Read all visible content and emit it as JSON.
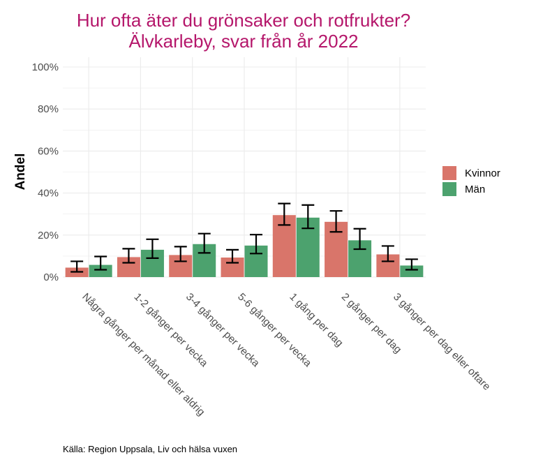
{
  "chart_data": {
    "type": "bar",
    "title": "Hur ofta äter du grönsaker och rotfrukter?",
    "subtitle": "Älvkarleby, svar från år 2022",
    "xlabel": "",
    "ylabel": "Andel",
    "ylim": [
      0,
      100
    ],
    "yticks": [
      "0%",
      "20%",
      "40%",
      "60%",
      "80%",
      "100%"
    ],
    "categories": [
      "Några gånger per månad eller aldrig",
      "1-2 gånger per vecka",
      "3-4 gånger per vecka",
      "5-6 gånger per vecka",
      "1 gång per dag",
      "2 gånger per dag",
      "3 gånger per dag eller oftare"
    ],
    "series": [
      {
        "name": "Kvinnor",
        "color": "#d9756a",
        "values": [
          4.5,
          9.5,
          10.5,
          9.3,
          29.5,
          26.3,
          10.8
        ],
        "ci_low": [
          2.5,
          6.8,
          7.5,
          6.8,
          24.8,
          21.5,
          7.5
        ],
        "ci_high": [
          7.5,
          13.5,
          14.5,
          13.0,
          35.0,
          31.5,
          14.8
        ]
      },
      {
        "name": "Män",
        "color": "#4ca26e",
        "values": [
          5.8,
          13.0,
          15.7,
          15.0,
          28.3,
          17.5,
          5.5
        ],
        "ci_low": [
          3.5,
          9.0,
          11.5,
          11.2,
          23.2,
          13.3,
          3.5
        ],
        "ci_high": [
          9.8,
          18.0,
          20.7,
          20.2,
          34.3,
          23.0,
          8.5
        ]
      }
    ],
    "legend_position": "right",
    "grid": true
  },
  "caption": "Källa: Region Uppsala, Liv och hälsa vuxen"
}
